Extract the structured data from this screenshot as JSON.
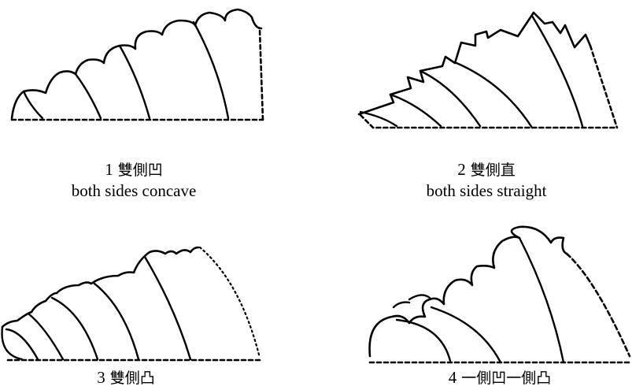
{
  "panels": [
    {
      "number": "1",
      "chinese": "雙側凹",
      "english": "both sides concave"
    },
    {
      "number": "2",
      "chinese": "雙側直",
      "english": "both sides straight"
    },
    {
      "number": "3",
      "chinese": "雙側凸",
      "english": ""
    },
    {
      "number": "4",
      "chinese": "一側凹一側凸",
      "english": ""
    }
  ]
}
